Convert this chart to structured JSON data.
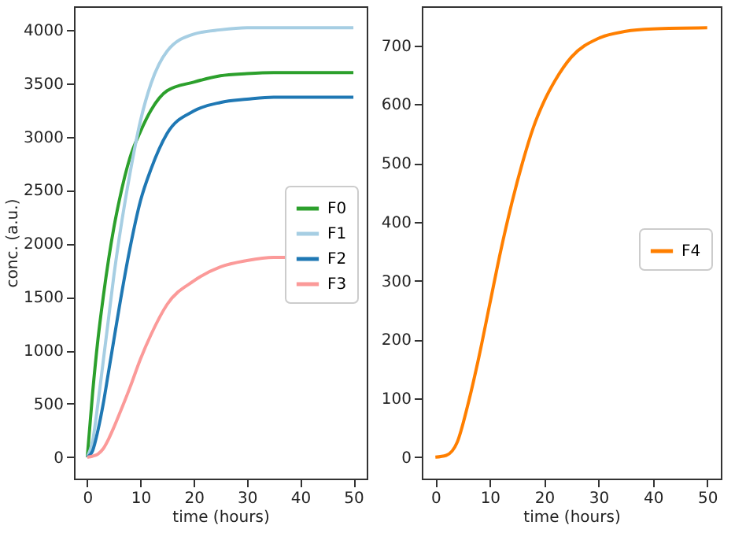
{
  "chart_data": [
    {
      "type": "line",
      "xlabel": "time (hours)",
      "ylabel": "conc. (a.u.)",
      "x": [
        0,
        1,
        2,
        3,
        4,
        5,
        6,
        8,
        10,
        12,
        15,
        20,
        25,
        30,
        35,
        40,
        50
      ],
      "xlim": [
        -2.5,
        52.5
      ],
      "xticks": [
        0,
        10,
        20,
        30,
        40,
        50
      ],
      "ylim": [
        -200,
        4220
      ],
      "yticks": [
        0,
        500,
        1000,
        1500,
        2000,
        2500,
        3000,
        3500,
        4000
      ],
      "legend": "center right",
      "line_style": "solid",
      "series": [
        {
          "name": "F0",
          "color": "#2ca02c",
          "values": [
            0,
            600,
            1100,
            1500,
            1850,
            2150,
            2400,
            2800,
            3050,
            3250,
            3430,
            3510,
            3570,
            3590,
            3600,
            3600,
            3600
          ]
        },
        {
          "name": "F1",
          "color": "#a6cee3",
          "values": [
            0,
            150,
            500,
            900,
            1300,
            1700,
            2050,
            2650,
            3150,
            3500,
            3800,
            3960,
            4000,
            4020,
            4020,
            4020,
            4020
          ]
        },
        {
          "name": "F2",
          "color": "#1f78b4",
          "values": [
            0,
            60,
            250,
            500,
            800,
            1100,
            1400,
            1950,
            2400,
            2700,
            3030,
            3240,
            3320,
            3350,
            3370,
            3370,
            3370
          ]
        },
        {
          "name": "F3",
          "color": "#fb9a99",
          "x": [
            0,
            1,
            2,
            3,
            4,
            5,
            6,
            8,
            10,
            12,
            15,
            20,
            25,
            30,
            35,
            38
          ],
          "values": [
            0,
            10,
            30,
            80,
            170,
            280,
            400,
            650,
            920,
            1150,
            1430,
            1650,
            1780,
            1840,
            1870,
            1870
          ]
        }
      ]
    },
    {
      "type": "line",
      "xlabel": "time (hours)",
      "x": [
        0,
        2,
        4,
        6,
        8,
        10,
        12,
        14,
        16,
        18,
        20,
        22,
        25,
        30,
        35,
        40,
        50
      ],
      "xlim": [
        -2.5,
        52.5
      ],
      "xticks": [
        0,
        10,
        20,
        30,
        40,
        50
      ],
      "ylim": [
        -36.5,
        766.5
      ],
      "yticks": [
        0,
        100,
        200,
        300,
        400,
        500,
        600,
        700
      ],
      "legend": "center right",
      "line_style": "solid",
      "series": [
        {
          "name": "F4",
          "color": "#ff7f00",
          "values": [
            0,
            3,
            25,
            90,
            170,
            260,
            350,
            430,
            500,
            560,
            605,
            640,
            680,
            712,
            724,
            728,
            730
          ]
        }
      ]
    }
  ]
}
